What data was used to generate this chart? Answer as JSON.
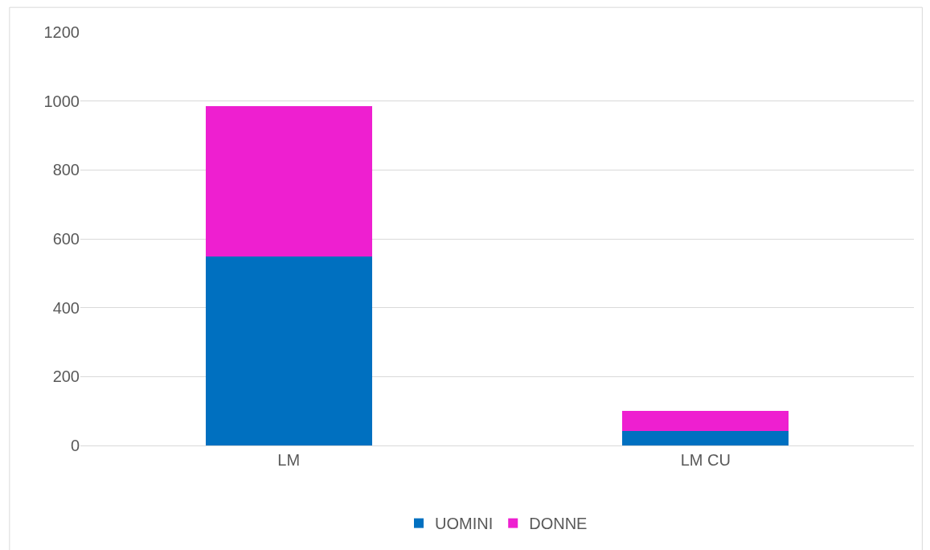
{
  "chart_data": {
    "type": "bar",
    "stacked": true,
    "categories": [
      "LM",
      "LM CU"
    ],
    "series": [
      {
        "name": "UOMINI",
        "color": "#0070c0",
        "values": [
          548,
          42
        ]
      },
      {
        "name": "DONNE",
        "color": "#ee1fd0",
        "values": [
          438,
          59
        ]
      }
    ],
    "ylim": [
      0,
      1200
    ],
    "yticks": [
      0,
      200,
      400,
      600,
      800,
      1000,
      1200
    ],
    "grid": "y",
    "legend": "bottom"
  }
}
